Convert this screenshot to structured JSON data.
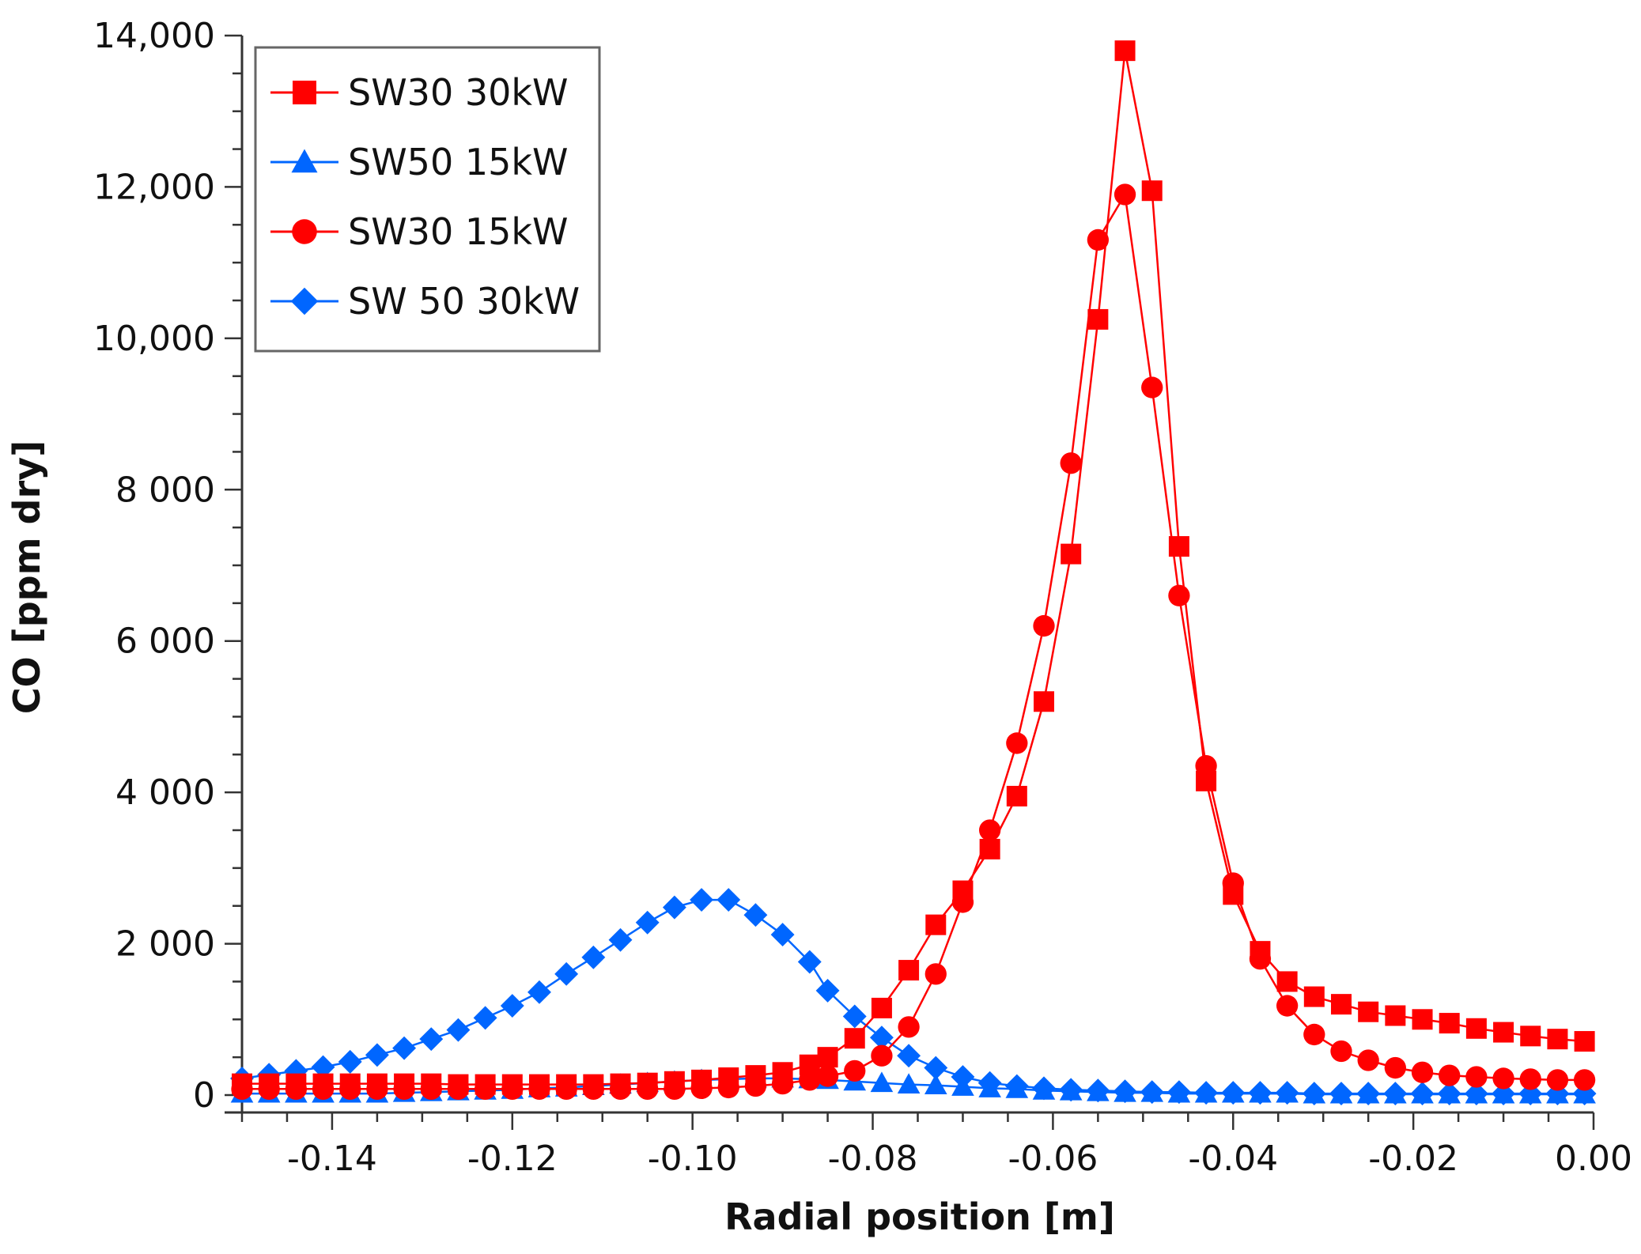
{
  "chart_data": {
    "type": "line",
    "xlabel": "Radial position [m]",
    "ylabel": "CO [ppm dry]",
    "xlim": [
      -0.15,
      0.0
    ],
    "ylim": [
      0,
      14000
    ],
    "x_ticks": [
      {
        "value": -0.14,
        "label": "-0.14"
      },
      {
        "value": -0.12,
        "label": "-0.12"
      },
      {
        "value": -0.1,
        "label": "-0.10"
      },
      {
        "value": -0.08,
        "label": "-0.08"
      },
      {
        "value": -0.06,
        "label": "-0.06"
      },
      {
        "value": -0.04,
        "label": "-0.04"
      },
      {
        "value": -0.02,
        "label": "-0.02"
      },
      {
        "value": 0.0,
        "label": "0.00"
      }
    ],
    "y_ticks": [
      {
        "value": 0,
        "label": "0"
      },
      {
        "value": 2000,
        "label": "2 000"
      },
      {
        "value": 4000,
        "label": "4 000"
      },
      {
        "value": 6000,
        "label": "6 000"
      },
      {
        "value": 8000,
        "label": "8 000"
      },
      {
        "value": 10000,
        "label": "10,000"
      },
      {
        "value": 12000,
        "label": "12,000"
      },
      {
        "value": 14000,
        "label": "14,000"
      }
    ],
    "grid": false,
    "legend_position": "top-left",
    "series": [
      {
        "name": "SW30 30kW",
        "color": "#ff0000",
        "marker": "square",
        "points": [
          [
            -0.15,
            150
          ],
          [
            -0.147,
            150
          ],
          [
            -0.144,
            150
          ],
          [
            -0.141,
            150
          ],
          [
            -0.138,
            150
          ],
          [
            -0.135,
            150
          ],
          [
            -0.132,
            150
          ],
          [
            -0.129,
            150
          ],
          [
            -0.126,
            140
          ],
          [
            -0.123,
            140
          ],
          [
            -0.12,
            140
          ],
          [
            -0.117,
            140
          ],
          [
            -0.114,
            140
          ],
          [
            -0.111,
            140
          ],
          [
            -0.108,
            150
          ],
          [
            -0.105,
            160
          ],
          [
            -0.102,
            180
          ],
          [
            -0.099,
            200
          ],
          [
            -0.096,
            230
          ],
          [
            -0.093,
            260
          ],
          [
            -0.09,
            300
          ],
          [
            -0.087,
            400
          ],
          [
            -0.085,
            500
          ],
          [
            -0.082,
            750
          ],
          [
            -0.079,
            1150
          ],
          [
            -0.076,
            1650
          ],
          [
            -0.073,
            2250
          ],
          [
            -0.07,
            2700
          ],
          [
            -0.067,
            3250
          ],
          [
            -0.064,
            3950
          ],
          [
            -0.061,
            5200
          ],
          [
            -0.058,
            7150
          ],
          [
            -0.055,
            10250
          ],
          [
            -0.052,
            13800
          ],
          [
            -0.049,
            11950
          ],
          [
            -0.046,
            7250
          ],
          [
            -0.043,
            4150
          ],
          [
            -0.04,
            2650
          ],
          [
            -0.037,
            1900
          ],
          [
            -0.034,
            1500
          ],
          [
            -0.031,
            1300
          ],
          [
            -0.028,
            1200
          ],
          [
            -0.025,
            1100
          ],
          [
            -0.022,
            1050
          ],
          [
            -0.019,
            1000
          ],
          [
            -0.016,
            950
          ],
          [
            -0.013,
            880
          ],
          [
            -0.01,
            830
          ],
          [
            -0.007,
            780
          ],
          [
            -0.004,
            740
          ],
          [
            -0.001,
            710
          ]
        ]
      },
      {
        "name": "SW50 15kW",
        "color": "#0066ff",
        "marker": "triangle",
        "points": [
          [
            -0.15,
            20
          ],
          [
            -0.147,
            20
          ],
          [
            -0.144,
            20
          ],
          [
            -0.141,
            20
          ],
          [
            -0.138,
            20
          ],
          [
            -0.135,
            20
          ],
          [
            -0.132,
            30
          ],
          [
            -0.129,
            40
          ],
          [
            -0.126,
            50
          ],
          [
            -0.123,
            60
          ],
          [
            -0.12,
            70
          ],
          [
            -0.117,
            90
          ],
          [
            -0.114,
            100
          ],
          [
            -0.111,
            120
          ],
          [
            -0.108,
            140
          ],
          [
            -0.105,
            160
          ],
          [
            -0.102,
            180
          ],
          [
            -0.099,
            200
          ],
          [
            -0.096,
            210
          ],
          [
            -0.093,
            220
          ],
          [
            -0.09,
            220
          ],
          [
            -0.087,
            210
          ],
          [
            -0.085,
            200
          ],
          [
            -0.082,
            180
          ],
          [
            -0.079,
            160
          ],
          [
            -0.076,
            140
          ],
          [
            -0.073,
            130
          ],
          [
            -0.07,
            110
          ],
          [
            -0.067,
            90
          ],
          [
            -0.064,
            80
          ],
          [
            -0.061,
            60
          ],
          [
            -0.058,
            50
          ],
          [
            -0.055,
            40
          ],
          [
            -0.052,
            30
          ],
          [
            -0.049,
            30
          ],
          [
            -0.046,
            20
          ],
          [
            -0.043,
            20
          ],
          [
            -0.04,
            20
          ],
          [
            -0.037,
            20
          ],
          [
            -0.034,
            20
          ],
          [
            -0.031,
            10
          ],
          [
            -0.028,
            10
          ],
          [
            -0.025,
            10
          ],
          [
            -0.022,
            10
          ],
          [
            -0.019,
            10
          ],
          [
            -0.016,
            10
          ],
          [
            -0.013,
            10
          ],
          [
            -0.01,
            10
          ],
          [
            -0.007,
            10
          ],
          [
            -0.004,
            10
          ],
          [
            -0.001,
            10
          ]
        ]
      },
      {
        "name": "SW30 15kW",
        "color": "#ff0000",
        "marker": "circle",
        "points": [
          [
            -0.15,
            80
          ],
          [
            -0.147,
            80
          ],
          [
            -0.144,
            80
          ],
          [
            -0.141,
            80
          ],
          [
            -0.138,
            80
          ],
          [
            -0.135,
            80
          ],
          [
            -0.132,
            80
          ],
          [
            -0.129,
            80
          ],
          [
            -0.126,
            80
          ],
          [
            -0.123,
            80
          ],
          [
            -0.12,
            80
          ],
          [
            -0.117,
            80
          ],
          [
            -0.114,
            80
          ],
          [
            -0.111,
            80
          ],
          [
            -0.108,
            80
          ],
          [
            -0.105,
            80
          ],
          [
            -0.102,
            80
          ],
          [
            -0.099,
            90
          ],
          [
            -0.096,
            100
          ],
          [
            -0.093,
            120
          ],
          [
            -0.09,
            150
          ],
          [
            -0.087,
            200
          ],
          [
            -0.085,
            250
          ],
          [
            -0.082,
            320
          ],
          [
            -0.079,
            520
          ],
          [
            -0.076,
            900
          ],
          [
            -0.073,
            1600
          ],
          [
            -0.07,
            2550
          ],
          [
            -0.067,
            3500
          ],
          [
            -0.064,
            4650
          ],
          [
            -0.061,
            6200
          ],
          [
            -0.058,
            8350
          ],
          [
            -0.055,
            11300
          ],
          [
            -0.052,
            11900
          ],
          [
            -0.049,
            9350
          ],
          [
            -0.046,
            6600
          ],
          [
            -0.043,
            4350
          ],
          [
            -0.04,
            2800
          ],
          [
            -0.037,
            1800
          ],
          [
            -0.034,
            1180
          ],
          [
            -0.031,
            800
          ],
          [
            -0.028,
            580
          ],
          [
            -0.025,
            460
          ],
          [
            -0.022,
            360
          ],
          [
            -0.019,
            300
          ],
          [
            -0.016,
            260
          ],
          [
            -0.013,
            240
          ],
          [
            -0.01,
            220
          ],
          [
            -0.007,
            210
          ],
          [
            -0.004,
            200
          ],
          [
            -0.001,
            200
          ]
        ]
      },
      {
        "name": "SW 50 30kW",
        "color": "#0066ff",
        "marker": "diamond",
        "points": [
          [
            -0.15,
            220
          ],
          [
            -0.147,
            270
          ],
          [
            -0.144,
            320
          ],
          [
            -0.141,
            370
          ],
          [
            -0.138,
            440
          ],
          [
            -0.135,
            530
          ],
          [
            -0.132,
            620
          ],
          [
            -0.129,
            740
          ],
          [
            -0.126,
            860
          ],
          [
            -0.123,
            1020
          ],
          [
            -0.12,
            1180
          ],
          [
            -0.117,
            1360
          ],
          [
            -0.114,
            1600
          ],
          [
            -0.111,
            1820
          ],
          [
            -0.108,
            2050
          ],
          [
            -0.105,
            2280
          ],
          [
            -0.102,
            2480
          ],
          [
            -0.099,
            2580
          ],
          [
            -0.096,
            2580
          ],
          [
            -0.093,
            2380
          ],
          [
            -0.09,
            2120
          ],
          [
            -0.087,
            1760
          ],
          [
            -0.085,
            1380
          ],
          [
            -0.082,
            1040
          ],
          [
            -0.079,
            760
          ],
          [
            -0.076,
            520
          ],
          [
            -0.073,
            360
          ],
          [
            -0.07,
            240
          ],
          [
            -0.067,
            160
          ],
          [
            -0.064,
            120
          ],
          [
            -0.061,
            90
          ],
          [
            -0.058,
            70
          ],
          [
            -0.055,
            60
          ],
          [
            -0.052,
            50
          ],
          [
            -0.049,
            40
          ],
          [
            -0.046,
            40
          ],
          [
            -0.043,
            30
          ],
          [
            -0.04,
            30
          ],
          [
            -0.037,
            30
          ],
          [
            -0.034,
            30
          ],
          [
            -0.031,
            20
          ],
          [
            -0.028,
            20
          ],
          [
            -0.025,
            20
          ],
          [
            -0.022,
            20
          ],
          [
            -0.019,
            20
          ],
          [
            -0.016,
            20
          ],
          [
            -0.013,
            20
          ],
          [
            -0.01,
            20
          ],
          [
            -0.007,
            20
          ],
          [
            -0.004,
            20
          ],
          [
            -0.001,
            20
          ]
        ]
      }
    ]
  }
}
